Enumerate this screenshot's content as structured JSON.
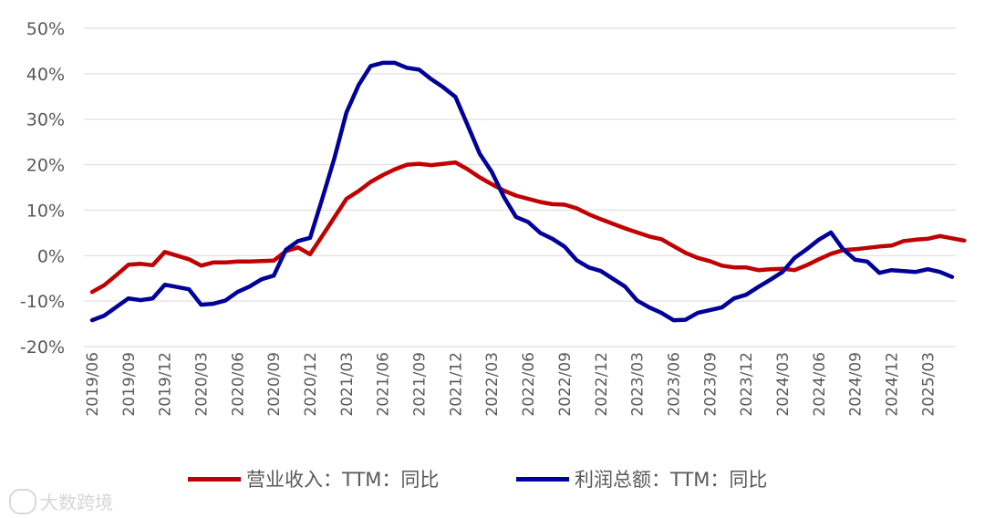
{
  "chart_data": {
    "type": "line",
    "title": "",
    "xlabel": "",
    "ylabel": "",
    "ylim": [
      -20,
      50
    ],
    "yticks": [
      "50%",
      "40%",
      "30%",
      "20%",
      "10%",
      "0%",
      "-10%",
      "-20%"
    ],
    "ytick_values": [
      50,
      40,
      30,
      20,
      10,
      0,
      -10,
      -20
    ],
    "x_labels": [
      "2019/06",
      "2019/09",
      "2019/12",
      "2020/03",
      "2020/06",
      "2020/09",
      "2020/12",
      "2021/03",
      "2021/06",
      "2021/09",
      "2021/12",
      "2022/03",
      "2022/06",
      "2022/09",
      "2022/12",
      "2023/03",
      "2023/06",
      "2023/09",
      "2023/12",
      "2024/03",
      "2024/06",
      "2024/09",
      "2024/12",
      "2025/03"
    ],
    "grid": true,
    "legend_position": "bottom",
    "series": [
      {
        "name": "营业收入：TTM：同比",
        "color": "#C00000",
        "values": [
          -8.0,
          -6.5,
          -4.3,
          -2.0,
          -1.8,
          -2.1,
          0.8,
          0,
          -0.8,
          -2.2,
          -1.5,
          -1.5,
          -1.3,
          -1.3,
          -1.2,
          -1.1,
          1.0,
          1.8,
          0.3,
          4.3,
          8.4,
          12.5,
          14.2,
          16.2,
          17.7,
          19.0,
          20.0,
          20.2,
          19.9,
          20.2,
          20.5,
          19.0,
          17.2,
          15.7,
          14.3,
          13.2,
          12.5,
          11.8,
          11.3,
          11.2,
          10.4,
          9.1,
          8.0,
          7.0,
          6.0,
          5.1,
          4.2,
          3.6,
          2.1,
          0.6,
          -0.5,
          -1.2,
          -2.2,
          -2.6,
          -2.6,
          -3.2,
          -3.0,
          -2.9,
          -3.2,
          -2.1,
          -0.8,
          0.4,
          1.2,
          1.4,
          1.7,
          2.0,
          2.2,
          3.2,
          3.5,
          3.7,
          4.3,
          3.8,
          3.3
        ]
      },
      {
        "name": "利润总额：TTM：同比",
        "color": "#000099",
        "values": [
          -14.2,
          -13.2,
          -11.3,
          -9.4,
          -9.8,
          -9.4,
          -6.4,
          -6.9,
          -7.4,
          -10.8,
          -10.6,
          -9.9,
          -8.0,
          -6.8,
          -5.2,
          -4.4,
          1.3,
          3.2,
          3.9,
          12.5,
          21.4,
          31.5,
          37.5,
          41.7,
          42.4,
          42.4,
          41.3,
          40.9,
          38.8,
          37.0,
          34.9,
          28.7,
          22.4,
          18.4,
          12.9,
          8.5,
          7.4,
          5.0,
          3.7,
          2.0,
          -1.0,
          -2.6,
          -3.4,
          -5.1,
          -6.8,
          -9.9,
          -11.4,
          -12.6,
          -14.2,
          -14.1,
          -12.6,
          -12.0,
          -11.4,
          -9.4,
          -8.6,
          -6.9,
          -5.3,
          -3.6,
          -0.5,
          1.4,
          3.5,
          5.1,
          1.4,
          -0.9,
          -1.3,
          -3.8,
          -3.2,
          -3.4,
          -3.6,
          -3.0,
          -3.6,
          -4.7
        ]
      }
    ]
  },
  "watermark": {
    "text": "大数跨境"
  }
}
